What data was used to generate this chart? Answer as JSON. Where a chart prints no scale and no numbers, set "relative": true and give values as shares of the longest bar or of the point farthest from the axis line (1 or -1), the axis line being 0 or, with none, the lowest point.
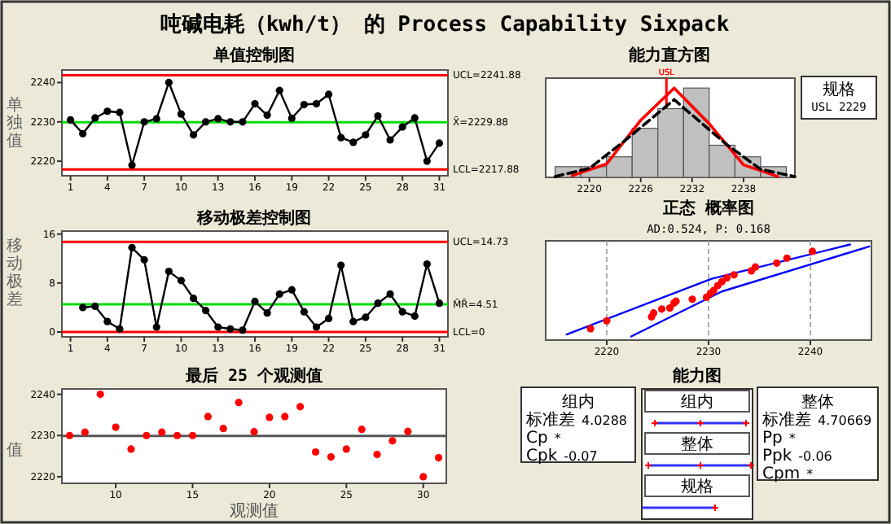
{
  "chart_data": [
    {
      "type": "line",
      "title": "吨碱电耗（kwh/t） 的 Process Capability Sixpack",
      "subtitle": "单值控制图",
      "ylabel": "单独值",
      "color": "#000000",
      "marker": "circle",
      "x": [
        1,
        2,
        3,
        4,
        5,
        6,
        7,
        8,
        9,
        10,
        11,
        12,
        13,
        14,
        15,
        16,
        17,
        18,
        19,
        20,
        21,
        22,
        23,
        24,
        25,
        26,
        27,
        28,
        29,
        30,
        31
      ],
      "values": [
        2230.5,
        2227,
        2231,
        2232.7,
        2232.4,
        2219,
        2230,
        2230.8,
        2240,
        2232,
        2226.7,
        2230,
        2230.8,
        2230,
        2230,
        2234.6,
        2231.7,
        2238,
        2230.9,
        2234.4,
        2234.6,
        2237,
        2226,
        2224.8,
        2226.7,
        2231.5,
        2225.4,
        2228.7,
        2231,
        2220,
        2224.6
      ],
      "xlim": [
        0.3,
        31.7
      ],
      "xticks": [
        1,
        4,
        7,
        10,
        13,
        16,
        19,
        22,
        25,
        28,
        31
      ],
      "ylim": [
        2216.3,
        2243.2
      ],
      "yticks": [
        2220,
        2230,
        2240
      ],
      "ref_lines": [
        {
          "axis": "y",
          "value": 2241.88,
          "label": "UCL=2241.88",
          "color": "#ff0000"
        },
        {
          "axis": "y",
          "value": 2229.88,
          "label": "X̄=2229.88",
          "color": "#00dd00"
        },
        {
          "axis": "y",
          "value": 2217.88,
          "label": "LCL=2217.88",
          "color": "#ff0000"
        }
      ]
    },
    {
      "type": "line",
      "title": "移动极差控制图",
      "ylabel": "移动极差",
      "color": "#000000",
      "marker": "circle",
      "x": [
        2,
        3,
        4,
        5,
        6,
        7,
        8,
        9,
        10,
        11,
        12,
        13,
        14,
        15,
        16,
        17,
        18,
        19,
        20,
        21,
        22,
        23,
        24,
        25,
        26,
        27,
        28,
        29,
        30,
        31
      ],
      "values": [
        4,
        4.2,
        1.7,
        0.5,
        13.8,
        11.8,
        0.8,
        9.9,
        8.4,
        5.5,
        3.5,
        0.8,
        0.5,
        0.3,
        5,
        3.1,
        6.2,
        6.9,
        3.3,
        0.8,
        2.2,
        10.9,
        1.7,
        2.4,
        4.7,
        6.2,
        3.3,
        2.6,
        11.1,
        4.7
      ],
      "xlim": [
        0.3,
        31.7
      ],
      "xticks": [
        1,
        4,
        7,
        10,
        13,
        16,
        19,
        22,
        25,
        28,
        31
      ],
      "ylim": [
        -0.8,
        16.5
      ],
      "yticks": [
        0,
        8,
        16
      ],
      "ref_lines": [
        {
          "axis": "y",
          "value": 14.73,
          "label": "UCL=14.73",
          "color": "#ff0000"
        },
        {
          "axis": "y",
          "value": 4.51,
          "label": "M̄R̄=4.51",
          "color": "#00dd00"
        },
        {
          "axis": "y",
          "value": 0,
          "label": "LCL=0",
          "color": "#ff0000"
        }
      ]
    },
    {
      "type": "scatter",
      "title": "最后 25 个观测值",
      "xlabel": "观测值",
      "ylabel": "值",
      "color": "#ff0000",
      "x": [
        7,
        8,
        9,
        10,
        11,
        12,
        13,
        14,
        15,
        16,
        17,
        18,
        19,
        20,
        21,
        22,
        23,
        24,
        25,
        26,
        27,
        28,
        29,
        30,
        31
      ],
      "values": [
        2230,
        2230.8,
        2240,
        2232,
        2226.7,
        2230,
        2230.8,
        2230,
        2230,
        2234.6,
        2231.7,
        2238,
        2230.9,
        2234.4,
        2234.6,
        2237,
        2226,
        2224.8,
        2226.7,
        2231.5,
        2225.4,
        2228.7,
        2231,
        2220,
        2224.6
      ],
      "xlim": [
        6.5,
        31.5
      ],
      "xticks": [
        10,
        15,
        20,
        25,
        30
      ],
      "ylim": [
        2218.4,
        2241.3
      ],
      "yticks": [
        2220,
        2230,
        2240
      ],
      "ref_lines": [
        {
          "axis": "y",
          "value": 2229.88,
          "color": "#555555"
        }
      ]
    },
    {
      "type": "histogram",
      "title": "能力直方图",
      "relative": true,
      "color": "#c0c0c0",
      "bins": [
        2216,
        2219,
        2222,
        2225,
        2228,
        2231,
        2234,
        2237,
        2240,
        2243
      ],
      "values": [
        0.12,
        0.12,
        0.23,
        0.55,
        0.77,
        1,
        0.36,
        0.23,
        0.12
      ],
      "xlim": [
        2214.9,
        2244
      ],
      "xticks": [
        2220,
        2226,
        2232,
        2238
      ],
      "ref_lines": [
        {
          "axis": "x",
          "value": 2229,
          "label": "USL",
          "color": "#ff0000"
        }
      ],
      "series": [
        {
          "type": "line",
          "color": "#ff0000",
          "line_style": "solid",
          "x": [
            2218,
            2222,
            2226,
            2229.9,
            2234,
            2238,
            2242
          ],
          "values": [
            0.02,
            0.15,
            0.64,
            1,
            0.6,
            0.14,
            0.01
          ]
        },
        {
          "type": "line",
          "color": "#000000",
          "line_style": "dashed",
          "x": [
            2216,
            2220,
            2224,
            2229.9,
            2236,
            2240,
            2244
          ],
          "values": [
            0.01,
            0.1,
            0.4,
            0.87,
            0.37,
            0.09,
            0.01
          ]
        }
      ],
      "annotations": [
        "规格",
        "USL 2229"
      ]
    },
    {
      "type": "scatter",
      "title": "正态 概率图",
      "subtitle": "AD:0.524, P: 0.168",
      "relative": true,
      "grid": "x",
      "xlim": [
        2214,
        2246
      ],
      "xticks": [
        2220,
        2230,
        2240
      ],
      "series": [
        {
          "type": "scatter",
          "color": "#ff0000",
          "x": [
            2218.4,
            2220,
            2224.4,
            2224.6,
            2225.4,
            2226.2,
            2226.6,
            2226.8,
            2228.4,
            2229.8,
            2230.2,
            2230.5,
            2230.9,
            2231.3,
            2231.8,
            2232.5,
            2234.2,
            2234.6,
            2236.7,
            2237.7,
            2240.2
          ],
          "values": [
            0.085,
            0.17,
            0.213,
            0.255,
            0.298,
            0.309,
            0.362,
            0.383,
            0.404,
            0.426,
            0.468,
            0.5,
            0.553,
            0.596,
            0.638,
            0.67,
            0.713,
            0.755,
            0.798,
            0.851,
            0.926
          ]
        },
        {
          "type": "line",
          "color": "#0000ff",
          "x": [
            2216.05,
            2230.3,
            2243.9
          ],
          "values": [
            0.021,
            0.628,
            1
          ]
        },
        {
          "type": "line",
          "color": "#0000ff",
          "x": [
            2222.4,
            2231.3,
            2245.8
          ],
          "values": [
            0,
            0.489,
            0.979
          ]
        }
      ]
    },
    {
      "type": "other",
      "title": "能力图",
      "annotations": [
        "组内",
        "标准差 4.0288",
        "Cp *",
        "Cpk -0.07",
        "组内",
        "整体",
        "规格",
        "整体",
        "标准差 4.70669",
        "Pp *",
        "Ppk -0.06",
        "Cpm *"
      ]
    }
  ]
}
